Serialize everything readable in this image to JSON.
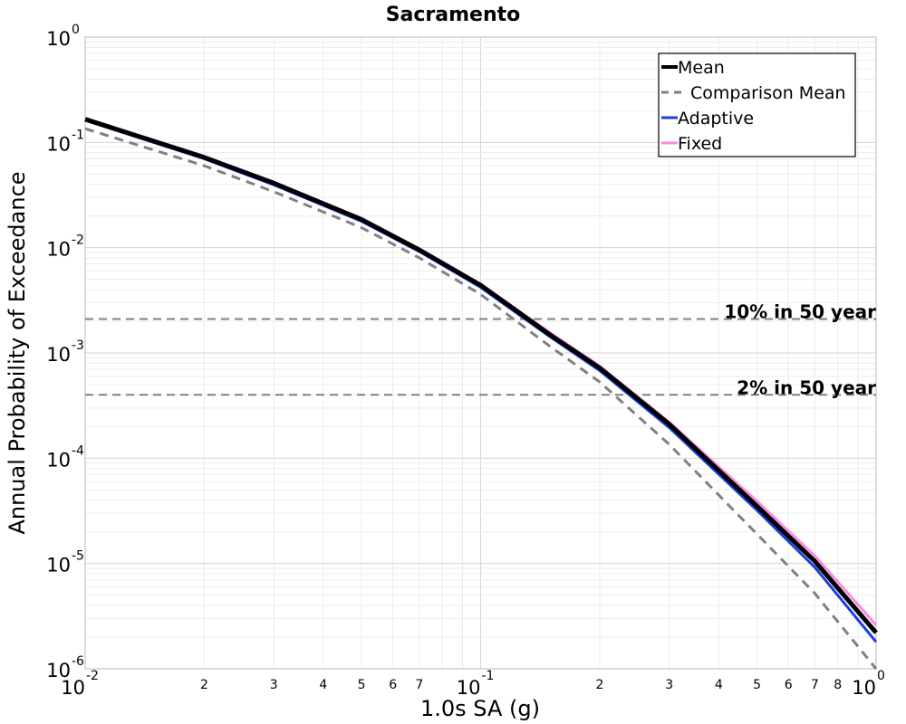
{
  "chart_data": {
    "type": "line",
    "title": "Sacramento",
    "xlabel": "1.0s SA (g)",
    "ylabel": "Annual Probability of Exceedance",
    "xscale": "log",
    "yscale": "log",
    "xlim": [
      0.01,
      1.0
    ],
    "ylim": [
      1e-06,
      1.0
    ],
    "grid": true,
    "legend_position": "top-right",
    "x_tick_labels": [
      {
        "value": 0.01,
        "base": "10",
        "exp": "-2"
      },
      {
        "value": 0.1,
        "base": "10",
        "exp": "-1"
      },
      {
        "value": 1.0,
        "base": "10",
        "exp": "0"
      }
    ],
    "x_minor_tick_labels": [
      {
        "value": 0.02,
        "label": "2"
      },
      {
        "value": 0.03,
        "label": "3"
      },
      {
        "value": 0.04,
        "label": "4"
      },
      {
        "value": 0.05,
        "label": "5"
      },
      {
        "value": 0.06,
        "label": "6"
      },
      {
        "value": 0.07,
        "label": "7"
      },
      {
        "value": 0.2,
        "label": "2"
      },
      {
        "value": 0.3,
        "label": "3"
      },
      {
        "value": 0.4,
        "label": "4"
      },
      {
        "value": 0.5,
        "label": "5"
      },
      {
        "value": 0.6,
        "label": "6"
      },
      {
        "value": 0.7,
        "label": "7"
      },
      {
        "value": 0.8,
        "label": "8"
      }
    ],
    "y_tick_labels": [
      {
        "value": 1.0,
        "base": "10",
        "exp": "0"
      },
      {
        "value": 0.1,
        "base": "10",
        "exp": "-1"
      },
      {
        "value": 0.01,
        "base": "10",
        "exp": "-2"
      },
      {
        "value": 0.001,
        "base": "10",
        "exp": "-3"
      },
      {
        "value": 0.0001,
        "base": "10",
        "exp": "-4"
      },
      {
        "value": 1e-05,
        "base": "10",
        "exp": "-5"
      },
      {
        "value": 1e-06,
        "base": "10",
        "exp": "-6"
      }
    ],
    "reference_lines": [
      {
        "label": "10% in 50 year",
        "y": 0.0021,
        "color": "#808080"
      },
      {
        "label": "2% in 50 year",
        "y": 0.0004,
        "color": "#808080"
      }
    ],
    "series": [
      {
        "name": "Fixed",
        "color": "#ff88e0",
        "width": 3,
        "dash": "",
        "x": [
          0.01,
          0.02,
          0.03,
          0.05,
          0.07,
          0.1,
          0.15,
          0.2,
          0.3,
          0.5,
          0.7,
          1.0
        ],
        "y": [
          0.17,
          0.074,
          0.042,
          0.019,
          0.0098,
          0.0045,
          0.00155,
          0.00075,
          0.00022,
          3.9e-05,
          1.18e-05,
          2.6e-06
        ]
      },
      {
        "name": "Adaptive",
        "color": "#1a3ee6",
        "width": 3,
        "dash": "",
        "x": [
          0.01,
          0.02,
          0.03,
          0.05,
          0.07,
          0.1,
          0.15,
          0.2,
          0.3,
          0.5,
          0.7,
          1.0
        ],
        "y": [
          0.162,
          0.07,
          0.0395,
          0.0178,
          0.0092,
          0.0042,
          0.00142,
          0.00068,
          0.000195,
          3.2e-05,
          9.2e-06,
          1.8e-06
        ]
      },
      {
        "name": "Comparison Mean",
        "color": "#808080",
        "width": 3,
        "dash": "10,7",
        "x": [
          0.01,
          0.02,
          0.03,
          0.05,
          0.07,
          0.1,
          0.15,
          0.2,
          0.3,
          0.5,
          0.7,
          1.0
        ],
        "y": [
          0.135,
          0.06,
          0.034,
          0.0155,
          0.008,
          0.0036,
          0.00115,
          0.00053,
          0.000135,
          1.9e-05,
          5.2e-06,
          1e-06
        ]
      },
      {
        "name": "Mean",
        "color": "#000000",
        "width": 5,
        "dash": "",
        "x": [
          0.01,
          0.02,
          0.03,
          0.05,
          0.07,
          0.1,
          0.15,
          0.2,
          0.3,
          0.5,
          0.7,
          1.0
        ],
        "y": [
          0.166,
          0.072,
          0.041,
          0.0185,
          0.0095,
          0.0044,
          0.00148,
          0.00072,
          0.00021,
          3.5e-05,
          1.05e-05,
          2.2e-06
        ]
      }
    ],
    "legend": [
      {
        "label": "Mean",
        "color": "#000000",
        "width": 4,
        "dash": ""
      },
      {
        "label": "Comparison Mean",
        "color": "#808080",
        "width": 3,
        "dash": "8,6"
      },
      {
        "label": "Adaptive",
        "color": "#1a3ee6",
        "width": 3,
        "dash": ""
      },
      {
        "label": "Fixed",
        "color": "#ff88e0",
        "width": 3,
        "dash": ""
      }
    ]
  }
}
